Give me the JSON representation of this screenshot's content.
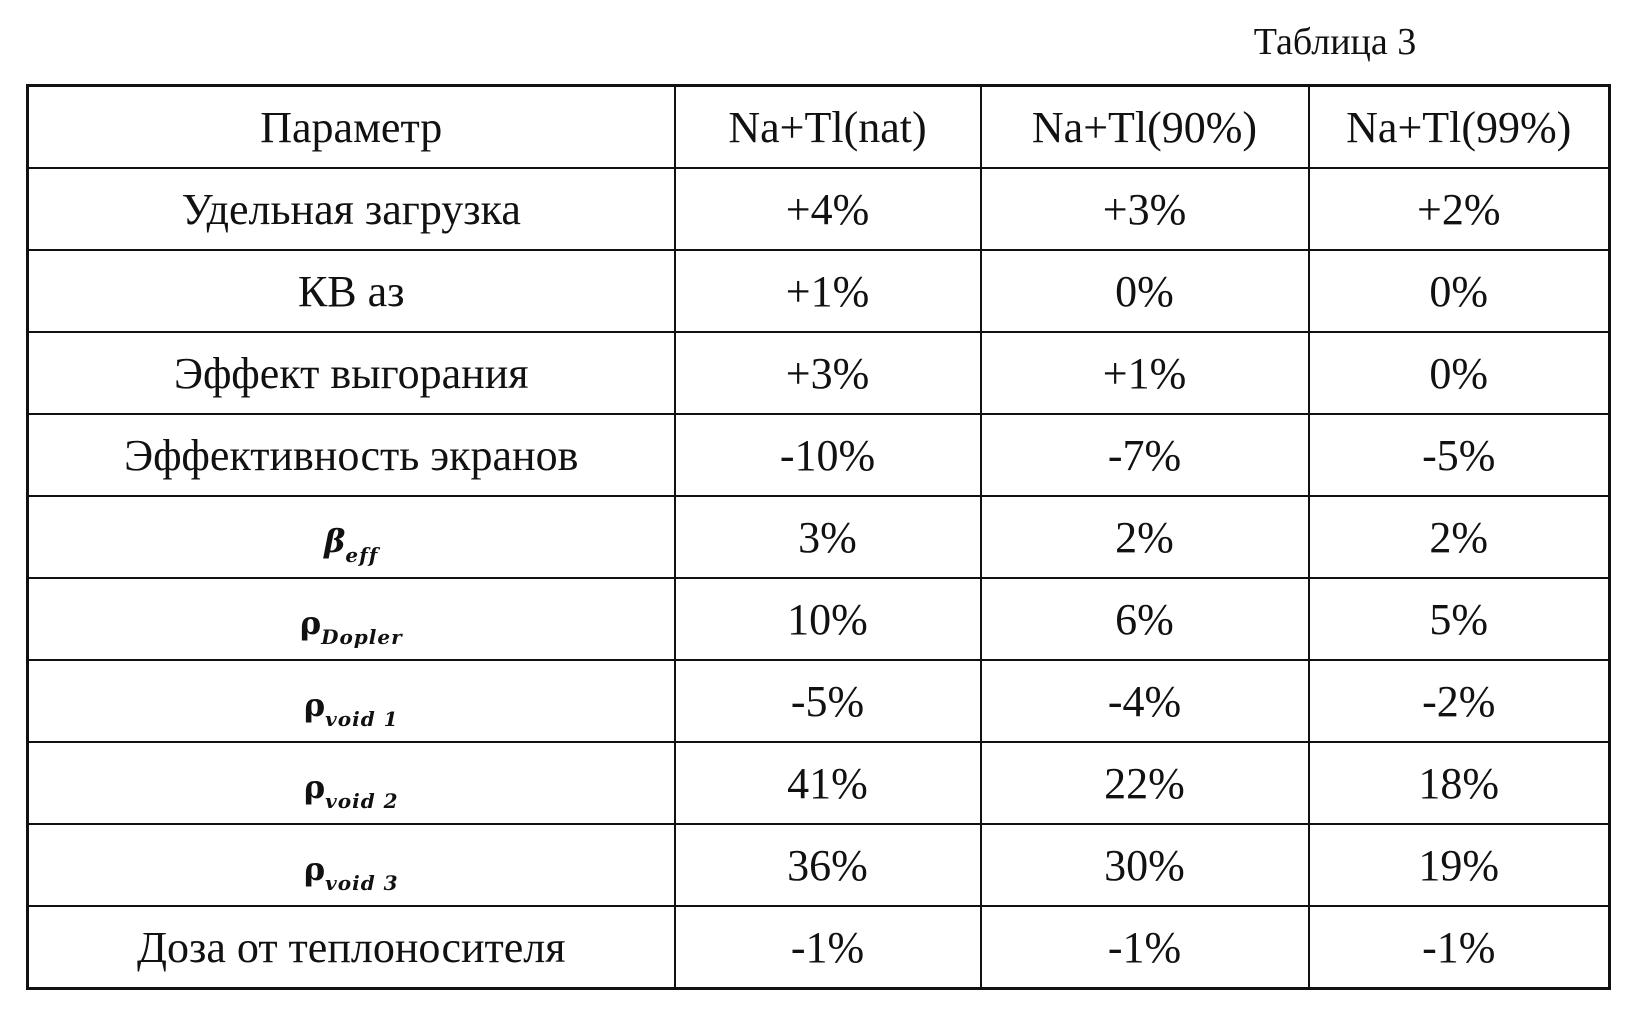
{
  "caption": "Таблица 3",
  "table": {
    "headers": [
      "Параметр",
      "Na+Tl(nat)",
      "Na+Tl(90%)",
      "Na+Tl(99%)"
    ],
    "rows": [
      {
        "param": "Удельная загрузка",
        "values": [
          "+4%",
          "+3%",
          "+2%"
        ]
      },
      {
        "param": "КВ аз",
        "values": [
          "+1%",
          "0%",
          "0%"
        ]
      },
      {
        "param": "Эффект выгорания",
        "values": [
          "+3%",
          "+1%",
          "0%"
        ]
      },
      {
        "param": "Эффективность экранов",
        "values": [
          "-10%",
          "-7%",
          "-5%"
        ]
      },
      {
        "param_symbol": "β",
        "param_sub": "eff",
        "values": [
          "3%",
          "2%",
          "2%"
        ]
      },
      {
        "param_symbol": "ρ",
        "param_sub": "Dopler",
        "values": [
          "10%",
          "6%",
          "5%"
        ]
      },
      {
        "param_symbol": "ρ",
        "param_sub": "void 1",
        "values": [
          "-5%",
          "-4%",
          "-2%"
        ]
      },
      {
        "param_symbol": "ρ",
        "param_sub": "void 2",
        "values": [
          "41%",
          "22%",
          "18%"
        ]
      },
      {
        "param_symbol": "ρ",
        "param_sub": "void 3",
        "values": [
          "36%",
          "30%",
          "19%"
        ]
      },
      {
        "param": "Доза от теплоносителя",
        "values": [
          "-1%",
          "-1%",
          "-1%"
        ]
      }
    ]
  }
}
